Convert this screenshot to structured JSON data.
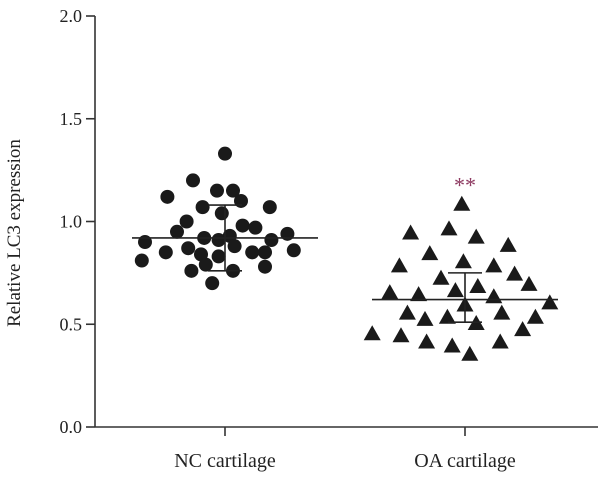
{
  "chart_data": {
    "type": "scatter",
    "ylabel": "Relative LC3 expression",
    "xlabel": "",
    "ylim": [
      0.0,
      2.0
    ],
    "y_ticks": [
      "0.0",
      "0.5",
      "1.0",
      "1.5",
      "2.0"
    ],
    "categories": [
      "NC cartilage",
      "OA cartilage"
    ],
    "series": [
      {
        "category": "NC cartilage",
        "marker": "circle",
        "color": "#1a1a1a",
        "mean": 0.92,
        "sd_upper": 1.08,
        "sd_lower": 0.76,
        "points": [
          {
            "offset": 0.0,
            "value": 1.33
          },
          {
            "offset": -0.2,
            "value": 1.2
          },
          {
            "offset": -0.05,
            "value": 1.15
          },
          {
            "offset": 0.05,
            "value": 1.15
          },
          {
            "offset": -0.36,
            "value": 1.12
          },
          {
            "offset": 0.1,
            "value": 1.1
          },
          {
            "offset": -0.14,
            "value": 1.07
          },
          {
            "offset": 0.28,
            "value": 1.07
          },
          {
            "offset": -0.02,
            "value": 1.04
          },
          {
            "offset": -0.24,
            "value": 1.0
          },
          {
            "offset": 0.11,
            "value": 0.98
          },
          {
            "offset": 0.19,
            "value": 0.97
          },
          {
            "offset": -0.3,
            "value": 0.95
          },
          {
            "offset": 0.39,
            "value": 0.94
          },
          {
            "offset": 0.03,
            "value": 0.93
          },
          {
            "offset": -0.13,
            "value": 0.92
          },
          {
            "offset": -0.04,
            "value": 0.91
          },
          {
            "offset": 0.29,
            "value": 0.91
          },
          {
            "offset": -0.5,
            "value": 0.9
          },
          {
            "offset": 0.06,
            "value": 0.88
          },
          {
            "offset": -0.23,
            "value": 0.87
          },
          {
            "offset": -0.37,
            "value": 0.85
          },
          {
            "offset": 0.17,
            "value": 0.85
          },
          {
            "offset": 0.25,
            "value": 0.85
          },
          {
            "offset": 0.43,
            "value": 0.86
          },
          {
            "offset": -0.15,
            "value": 0.84
          },
          {
            "offset": -0.04,
            "value": 0.83
          },
          {
            "offset": -0.52,
            "value": 0.81
          },
          {
            "offset": -0.12,
            "value": 0.79
          },
          {
            "offset": 0.25,
            "value": 0.78
          },
          {
            "offset": -0.21,
            "value": 0.76
          },
          {
            "offset": 0.05,
            "value": 0.76
          },
          {
            "offset": -0.08,
            "value": 0.7
          }
        ]
      },
      {
        "category": "OA cartilage",
        "marker": "triangle",
        "color": "#1a1a1a",
        "mean": 0.62,
        "sd_upper": 0.75,
        "sd_lower": 0.51,
        "significance": "**",
        "significance_color": "#8e3b62",
        "significance_value": 1.2,
        "points": [
          {
            "offset": -0.02,
            "value": 1.08
          },
          {
            "offset": -0.1,
            "value": 0.96
          },
          {
            "offset": -0.34,
            "value": 0.94
          },
          {
            "offset": 0.07,
            "value": 0.92
          },
          {
            "offset": 0.27,
            "value": 0.88
          },
          {
            "offset": -0.22,
            "value": 0.84
          },
          {
            "offset": -0.01,
            "value": 0.8
          },
          {
            "offset": -0.41,
            "value": 0.78
          },
          {
            "offset": 0.18,
            "value": 0.78
          },
          {
            "offset": 0.31,
            "value": 0.74
          },
          {
            "offset": -0.15,
            "value": 0.72
          },
          {
            "offset": 0.4,
            "value": 0.69
          },
          {
            "offset": 0.08,
            "value": 0.68
          },
          {
            "offset": -0.06,
            "value": 0.66
          },
          {
            "offset": -0.47,
            "value": 0.65
          },
          {
            "offset": -0.29,
            "value": 0.64
          },
          {
            "offset": 0.18,
            "value": 0.63
          },
          {
            "offset": 0.53,
            "value": 0.6
          },
          {
            "offset": 0.0,
            "value": 0.59
          },
          {
            "offset": -0.36,
            "value": 0.55
          },
          {
            "offset": 0.23,
            "value": 0.55
          },
          {
            "offset": -0.11,
            "value": 0.53
          },
          {
            "offset": 0.44,
            "value": 0.53
          },
          {
            "offset": -0.25,
            "value": 0.52
          },
          {
            "offset": 0.07,
            "value": 0.5
          },
          {
            "offset": 0.36,
            "value": 0.47
          },
          {
            "offset": -0.58,
            "value": 0.45
          },
          {
            "offset": -0.4,
            "value": 0.44
          },
          {
            "offset": -0.24,
            "value": 0.41
          },
          {
            "offset": 0.22,
            "value": 0.41
          },
          {
            "offset": -0.08,
            "value": 0.39
          },
          {
            "offset": 0.03,
            "value": 0.35
          }
        ]
      }
    ]
  }
}
